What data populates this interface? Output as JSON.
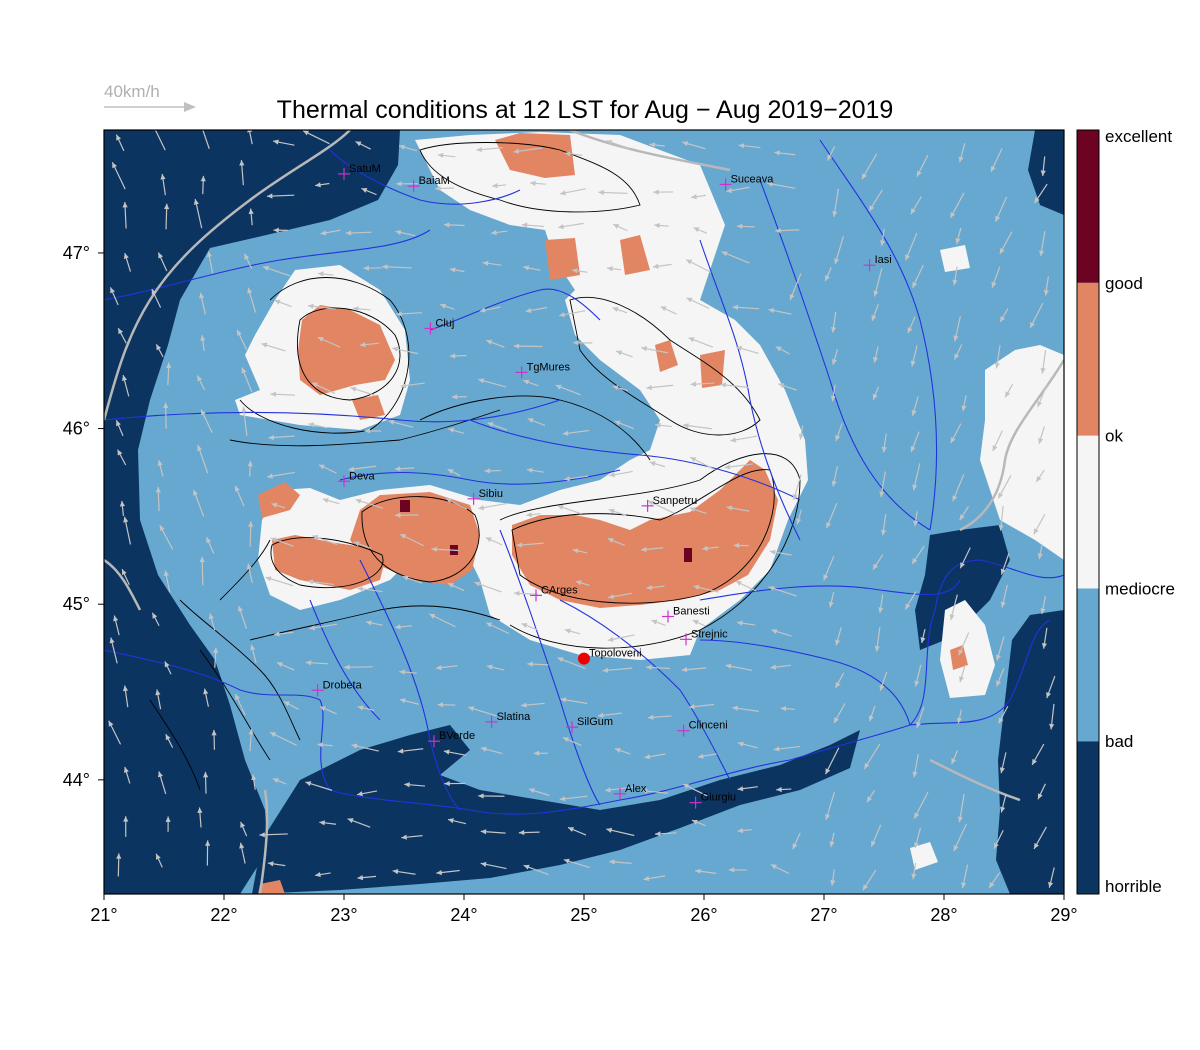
{
  "chart_data": {
    "type": "heatmap",
    "title": "Thermal conditions at 12 LST for Aug − Aug  2019−2019",
    "wind_scale_label": "40km/h",
    "xlim": [
      21,
      29
    ],
    "ylim": [
      43.35,
      47.7
    ],
    "x_ticks": [
      {
        "value": 21,
        "label": "21°"
      },
      {
        "value": 22,
        "label": "22°"
      },
      {
        "value": 23,
        "label": "23°"
      },
      {
        "value": 24,
        "label": "24°"
      },
      {
        "value": 25,
        "label": "25°"
      },
      {
        "value": 26,
        "label": "26°"
      },
      {
        "value": 27,
        "label": "27°"
      },
      {
        "value": 28,
        "label": "28°"
      },
      {
        "value": 29,
        "label": "29°"
      }
    ],
    "y_ticks": [
      {
        "value": 44,
        "label": "44°"
      },
      {
        "value": 45,
        "label": "45°"
      },
      {
        "value": 46,
        "label": "46°"
      },
      {
        "value": 47,
        "label": "47°"
      }
    ],
    "colorbar": {
      "labels": [
        "horrible",
        "bad",
        "mediocre",
        "ok",
        "good",
        "excellent"
      ],
      "colors": [
        "#0b3461",
        "#67a8d0",
        "#f5f5f5",
        "#e28563",
        "#6d0322"
      ]
    },
    "colors": {
      "horrible": "#0b3461",
      "bad": "#67a8d0",
      "mediocre": "#f5f5f5",
      "ok": "#e28563",
      "excellent": "#6d0322",
      "rivers": "#2233dd",
      "borders": "#b8b8b8",
      "contours": "#000000",
      "city_marker": "#cc33cc",
      "highlight_marker": "#ee0000",
      "wind_arrows": "#c0c0c0"
    },
    "cities": [
      {
        "name": "SatuM",
        "lon": 23.0,
        "lat": 47.45
      },
      {
        "name": "BaiaM",
        "lon": 23.58,
        "lat": 47.38
      },
      {
        "name": "Suceava",
        "lon": 26.18,
        "lat": 47.39
      },
      {
        "name": "Iasi",
        "lon": 27.38,
        "lat": 46.93
      },
      {
        "name": "Cluj",
        "lon": 23.72,
        "lat": 46.57
      },
      {
        "name": "TgMures",
        "lon": 24.48,
        "lat": 46.32
      },
      {
        "name": "Deva",
        "lon": 23.0,
        "lat": 45.7
      },
      {
        "name": "Sibiu",
        "lon": 24.08,
        "lat": 45.6
      },
      {
        "name": "Sanpetru",
        "lon": 25.53,
        "lat": 45.56
      },
      {
        "name": "CArges",
        "lon": 24.6,
        "lat": 45.05
      },
      {
        "name": "Banesti",
        "lon": 25.7,
        "lat": 44.93
      },
      {
        "name": "Strejnic",
        "lon": 25.85,
        "lat": 44.8
      },
      {
        "name": "Topoloveni",
        "lon": 25.0,
        "lat": 44.69,
        "highlight": true
      },
      {
        "name": "Drobeta",
        "lon": 22.78,
        "lat": 44.51
      },
      {
        "name": "Slatina",
        "lon": 24.23,
        "lat": 44.33
      },
      {
        "name": "SilGum",
        "lon": 24.9,
        "lat": 44.3
      },
      {
        "name": "Clinceni",
        "lon": 25.83,
        "lat": 44.28
      },
      {
        "name": "BVerde",
        "lon": 23.75,
        "lat": 44.22
      },
      {
        "name": "Alex",
        "lon": 25.3,
        "lat": 43.92
      },
      {
        "name": "Giurgiu",
        "lon": 25.93,
        "lat": 43.87
      }
    ]
  }
}
